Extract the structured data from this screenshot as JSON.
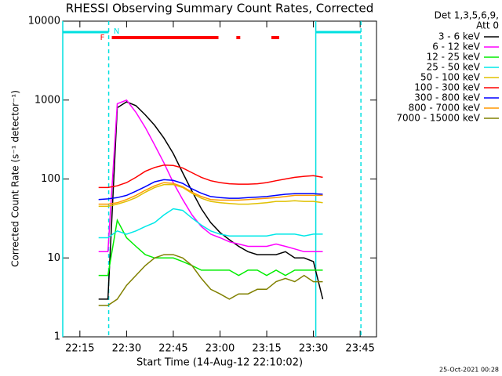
{
  "chart_data": {
    "type": "line",
    "title": "RHESSI Observing Summary Count Rates, Corrected",
    "x_label": "Start Time (14-Aug-12 22:10:02)",
    "y_label": "Corrected Count Rate (s⁻¹ detector⁻¹)",
    "legend_header": [
      "Det 1,3,5,6,9,",
      "Att 0"
    ],
    "footer": "25-Oct-2021 00:28",
    "log_y": true,
    "xlim": [
      9.5,
      110.25
    ],
    "ylim": [
      1,
      10000
    ],
    "xticks": [
      {
        "value": 15,
        "label": "22:15"
      },
      {
        "value": 30,
        "label": "22:30"
      },
      {
        "value": 45,
        "label": "22:45"
      },
      {
        "value": 60,
        "label": "23:00"
      },
      {
        "value": 75,
        "label": "23:15"
      },
      {
        "value": 90,
        "label": "23:30"
      },
      {
        "value": 105,
        "label": "23:45"
      }
    ],
    "yticks": [
      1,
      10,
      100,
      1000,
      10000
    ],
    "night_label": "N",
    "night_color": "#00e0e0",
    "night_intervals": [
      [
        9.5,
        24.25
      ],
      [
        90.75,
        105.25
      ]
    ],
    "flare_label": "F",
    "flare_color": "#ff0000",
    "flare_intervals": [
      [
        25.25,
        59.5
      ],
      [
        65.25,
        66.5
      ],
      [
        76.5,
        79
      ]
    ],
    "x": [
      21,
      24,
      27,
      30,
      33,
      36,
      39,
      42,
      45,
      48,
      51,
      54,
      57,
      60,
      63,
      66,
      69,
      72,
      75,
      78,
      81,
      84,
      87,
      90,
      93
    ],
    "series": [
      {
        "name": "3 - 6 keV",
        "color": "#000000",
        "values": [
          3,
          3,
          800,
          950,
          850,
          650,
          480,
          330,
          210,
          120,
          70,
          42,
          28,
          21,
          17,
          14,
          12,
          11,
          11,
          11,
          12,
          10,
          10,
          9,
          3
        ]
      },
      {
        "name": "6 - 12 keV",
        "color": "#ff00ff",
        "values": [
          12,
          12,
          900,
          1000,
          700,
          450,
          270,
          160,
          90,
          55,
          35,
          25,
          20,
          18,
          16,
          15,
          14,
          14,
          14,
          15,
          14,
          13,
          12,
          12,
          12
        ]
      },
      {
        "name": "12 - 25 keV",
        "color": "#00ee00",
        "values": [
          6,
          6,
          30,
          18,
          14,
          11,
          10,
          10,
          10,
          9,
          8,
          7,
          7,
          7,
          7,
          6,
          7,
          7,
          6,
          7,
          6,
          7,
          7,
          7,
          7
        ]
      },
      {
        "name": "25 - 50 keV",
        "color": "#00e8e8",
        "values": [
          18,
          18,
          22,
          20,
          22,
          25,
          28,
          35,
          42,
          40,
          32,
          26,
          22,
          20,
          19,
          19,
          19,
          19,
          19,
          20,
          20,
          20,
          19,
          20,
          20
        ]
      },
      {
        "name": "50 - 100 keV",
        "color": "#e0c000",
        "values": [
          45,
          45,
          48,
          52,
          58,
          68,
          78,
          85,
          85,
          78,
          66,
          57,
          52,
          50,
          49,
          48,
          48,
          49,
          50,
          52,
          52,
          53,
          52,
          52,
          50
        ]
      },
      {
        "name": "100 - 300 keV",
        "color": "#ff0000",
        "values": [
          78,
          78,
          82,
          90,
          105,
          125,
          140,
          150,
          148,
          138,
          120,
          105,
          95,
          90,
          87,
          86,
          86,
          87,
          90,
          95,
          100,
          105,
          108,
          110,
          105
        ]
      },
      {
        "name": "300 - 800 keV",
        "color": "#0000ff",
        "values": [
          55,
          56,
          58,
          62,
          70,
          80,
          92,
          98,
          96,
          88,
          75,
          66,
          60,
          58,
          57,
          57,
          58,
          59,
          60,
          62,
          64,
          65,
          65,
          65,
          64
        ]
      },
      {
        "name": "800 - 7000 keV",
        "color": "#ff9900",
        "values": [
          48,
          48,
          50,
          55,
          62,
          72,
          82,
          90,
          88,
          80,
          68,
          60,
          55,
          54,
          54,
          54,
          55,
          56,
          57,
          58,
          60,
          62,
          62,
          62,
          62
        ]
      },
      {
        "name": "7000 - 15000 keV",
        "color": "#808000",
        "values": [
          2.5,
          2.5,
          3,
          4.5,
          6,
          8,
          10,
          11,
          11,
          10,
          8,
          5.5,
          4,
          3.5,
          3,
          3.5,
          3.5,
          4,
          4,
          5,
          5.5,
          5,
          6,
          5,
          5
        ]
      }
    ]
  }
}
